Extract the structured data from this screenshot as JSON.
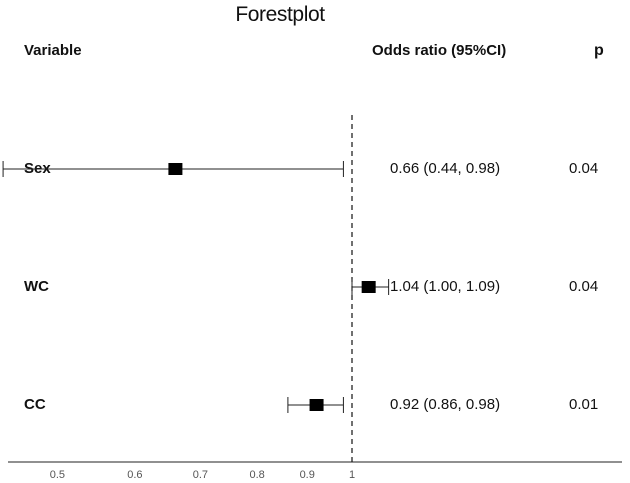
{
  "chart_data": {
    "type": "forest",
    "title": "Forestplot",
    "columns": {
      "variable": "Variable",
      "odds_ratio": "Odds ratio (95%CI)",
      "p": "p"
    },
    "reference_line": 1,
    "x_scale": "log",
    "x_ticks": [
      0.5,
      0.6,
      0.7,
      0.8,
      0.9,
      1
    ],
    "x_tick_labels": [
      "0.5",
      "0.6",
      "0.7",
      "0.8",
      "0.9",
      "1"
    ],
    "rows": [
      {
        "variable": "Sex",
        "estimate": 0.66,
        "lower": 0.44,
        "upper": 0.98,
        "ci_text": "0.66 (0.44, 0.98)",
        "p": "0.04"
      },
      {
        "variable": "WC",
        "estimate": 1.04,
        "lower": 1.0,
        "upper": 1.09,
        "ci_text": "1.04 (1.00, 1.09)",
        "p": "0.04"
      },
      {
        "variable": "CC",
        "estimate": 0.92,
        "lower": 0.86,
        "upper": 0.98,
        "ci_text": "0.92 (0.86, 0.98)",
        "p": "0.01"
      }
    ]
  }
}
